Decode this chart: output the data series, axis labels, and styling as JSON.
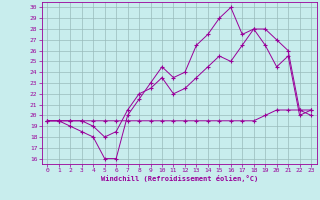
{
  "xlabel": "Windchill (Refroidissement éolien,°C)",
  "background_color": "#c8eded",
  "line_color": "#990099",
  "grid_color": "#99bbbb",
  "xlim": [
    -0.5,
    23.5
  ],
  "ylim": [
    15.5,
    30.5
  ],
  "xticks": [
    0,
    1,
    2,
    3,
    4,
    5,
    6,
    7,
    8,
    9,
    10,
    11,
    12,
    13,
    14,
    15,
    16,
    17,
    18,
    19,
    20,
    21,
    22,
    23
  ],
  "yticks": [
    16,
    17,
    18,
    19,
    20,
    21,
    22,
    23,
    24,
    25,
    26,
    27,
    28,
    29,
    30
  ],
  "line1_x": [
    0,
    1,
    2,
    3,
    4,
    5,
    6,
    7,
    8,
    9,
    10,
    11,
    12,
    13,
    14,
    15,
    16,
    17,
    18,
    19,
    20,
    21,
    22,
    23
  ],
  "line1_y": [
    19.5,
    19.5,
    19.0,
    18.5,
    18.0,
    16.0,
    16.0,
    20.0,
    21.5,
    23.0,
    24.5,
    23.5,
    24.0,
    26.5,
    27.5,
    29.0,
    30.0,
    27.5,
    28.0,
    26.5,
    24.5,
    25.5,
    20.0,
    20.5
  ],
  "line2_x": [
    0,
    1,
    2,
    3,
    4,
    5,
    6,
    7,
    8,
    9,
    10,
    11,
    12,
    13,
    14,
    15,
    16,
    17,
    18,
    19,
    20,
    21,
    22,
    23
  ],
  "line2_y": [
    19.5,
    19.5,
    19.5,
    19.5,
    19.5,
    19.5,
    19.5,
    19.5,
    19.5,
    19.5,
    19.5,
    19.5,
    19.5,
    19.5,
    19.5,
    19.5,
    19.5,
    19.5,
    19.5,
    20.0,
    20.5,
    20.5,
    20.5,
    20.0
  ],
  "line3_x": [
    0,
    1,
    2,
    3,
    4,
    5,
    6,
    7,
    8,
    9,
    10,
    11,
    12,
    13,
    14,
    15,
    16,
    17,
    18,
    19,
    20,
    21,
    22,
    23
  ],
  "line3_y": [
    19.5,
    19.5,
    19.5,
    19.5,
    19.0,
    18.0,
    18.5,
    20.5,
    22.0,
    22.5,
    23.5,
    22.0,
    22.5,
    23.5,
    24.5,
    25.5,
    25.0,
    26.5,
    28.0,
    28.0,
    27.0,
    26.0,
    20.5,
    20.5
  ]
}
